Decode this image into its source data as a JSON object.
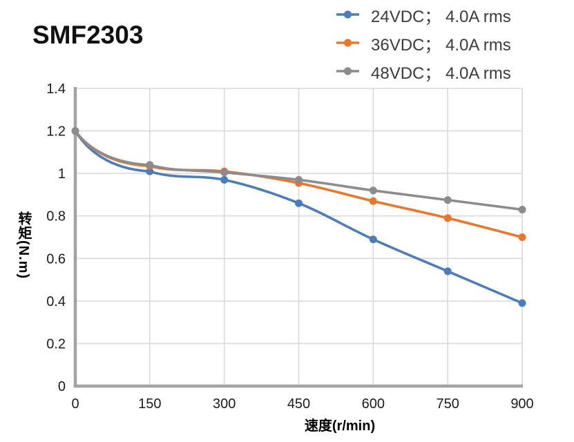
{
  "chart_data": {
    "type": "line",
    "title": "SMF2303",
    "xlabel": "速度(r/min)",
    "ylabel": "转矩(N.m)",
    "x": [
      0,
      150,
      300,
      450,
      600,
      750,
      900
    ],
    "series": [
      {
        "name": "24VDC； 4.0A rms",
        "color": "#4D7CBB",
        "values": [
          1.2,
          1.01,
          0.97,
          0.86,
          0.69,
          0.54,
          0.39
        ]
      },
      {
        "name": "36VDC； 4.0A rms",
        "color": "#E8772D",
        "values": [
          1.2,
          1.035,
          1.01,
          0.955,
          0.87,
          0.79,
          0.7
        ]
      },
      {
        "name": "48VDC； 4.0A rms",
        "color": "#8C8C8C",
        "values": [
          1.2,
          1.04,
          1.005,
          0.97,
          0.92,
          0.875,
          0.83
        ]
      }
    ],
    "xlim": [
      0,
      900
    ],
    "ylim": [
      0,
      1.4
    ],
    "xticks": [
      0,
      150,
      300,
      450,
      600,
      750,
      900
    ],
    "xtick_labels": [
      "0",
      "150",
      "300",
      "450",
      "600",
      "750",
      "900"
    ],
    "yticks": [
      0,
      0.2,
      0.4,
      0.6,
      0.8,
      1,
      1.2,
      1.4
    ],
    "ytick_labels": [
      "0",
      "0.2",
      "0.4",
      "0.6",
      "0.8",
      "1",
      "1.2",
      "1.4"
    ],
    "grid": true,
    "legend_position": "top-right",
    "grid_color": "#D9D9D9",
    "axis_color": "#A3A3A3",
    "tick_label_color": "#1c1c1c"
  }
}
